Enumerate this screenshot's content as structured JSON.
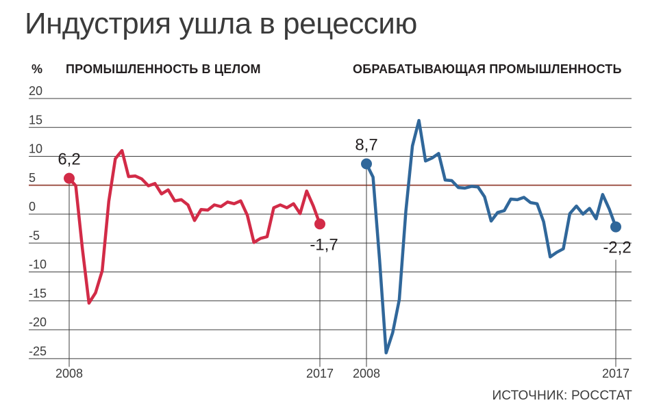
{
  "title": "Индустрия ушла в рецессию",
  "unit": "%",
  "source": "ИСТОЧНИК: РОССТАТ",
  "colors": {
    "industry": "#d22b47",
    "manufacturing": "#30679a",
    "reference_line": "#a0574a",
    "grid": "#3c3c3c"
  },
  "chart_data": [
    {
      "type": "line",
      "title": "ПРОМЫШЛЕННОСТЬ В ЦЕЛОМ",
      "ylabel": "%",
      "ylim": [
        -25,
        20
      ],
      "yticks": [
        20,
        15,
        10,
        5,
        0,
        -5,
        -10,
        -15,
        -20,
        -25
      ],
      "xtick_labels": [
        "2008",
        "2017"
      ],
      "reference_line": 5,
      "series": [
        {
          "color": "#d22b47",
          "values": [
            6.2,
            4.9,
            -6,
            -15.4,
            -13.6,
            -9.8,
            2.2,
            9.6,
            11,
            6.5,
            6.6,
            6.1,
            4.9,
            5.3,
            3.5,
            4.2,
            2.3,
            2.5,
            1.6,
            -1.1,
            0.8,
            0.7,
            1.6,
            1.3,
            2.1,
            1.8,
            2.3,
            -0.2,
            -4.9,
            -4.2,
            -3.9,
            1.1,
            1.6,
            1.1,
            1.8,
            0.1,
            4,
            1.4,
            -1.7
          ],
          "start_label": "6,2",
          "end_label": "-1,7"
        }
      ]
    },
    {
      "type": "line",
      "title": "ОБРАБАТЫВАЮЩАЯ ПРОМЫШЛЕННОСТЬ",
      "ylabel": "%",
      "ylim": [
        -25,
        20
      ],
      "yticks": [
        20,
        15,
        10,
        5,
        0,
        -5,
        -10,
        -15,
        -20,
        -25
      ],
      "xtick_labels": [
        "2008",
        "2017"
      ],
      "reference_line": 5,
      "series": [
        {
          "color": "#30679a",
          "values": [
            8.7,
            6.4,
            -8,
            -24,
            -20.5,
            -14.8,
            0.5,
            11.8,
            16.2,
            9.2,
            9.7,
            10.5,
            5.9,
            5.8,
            4.6,
            4.5,
            4.8,
            4.7,
            3,
            -1.2,
            0.3,
            0.6,
            2.6,
            2.5,
            2.9,
            2,
            1.8,
            -1.3,
            -7.4,
            -6.6,
            -6,
            0.1,
            1.4,
            0,
            1,
            -0.8,
            3.4,
            0.9,
            -2.2
          ],
          "start_label": "8,7",
          "end_label": "-2,2"
        }
      ]
    }
  ]
}
